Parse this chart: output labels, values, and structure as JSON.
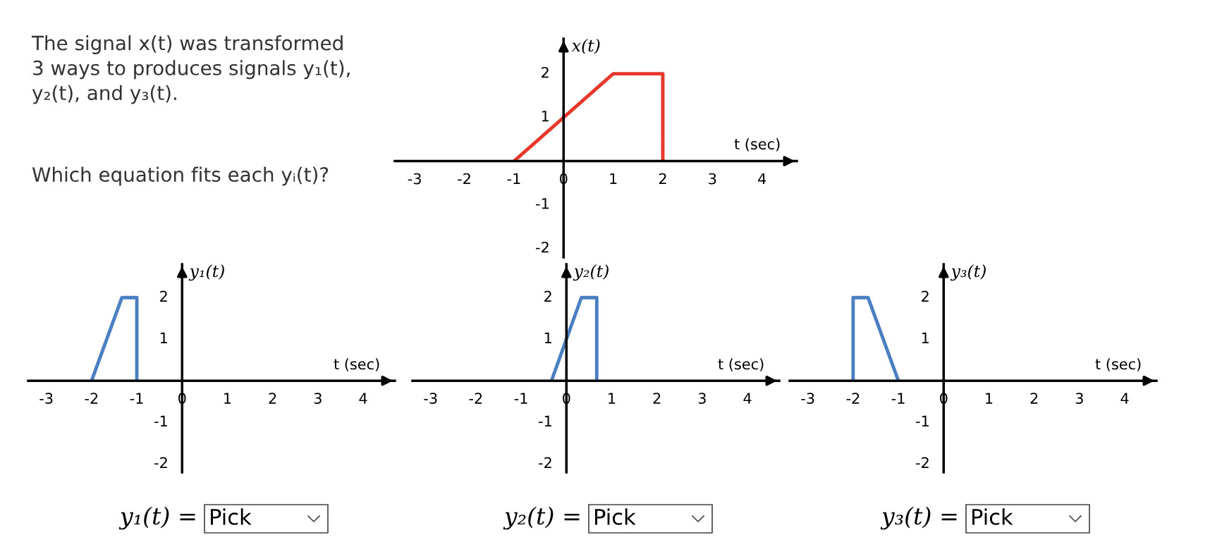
{
  "chart_data": [
    {
      "type": "line",
      "xlabel": "t (sec)",
      "ylabel": "x(t)",
      "xlim": [
        -3.4,
        4.7
      ],
      "ylim": [
        -2.2,
        2.8
      ],
      "xticks": [
        -3,
        -2,
        -1,
        0,
        1,
        2,
        3,
        4
      ],
      "yticks": [
        -2,
        -1,
        1,
        2
      ],
      "grid": false,
      "legend": false,
      "marker": "none",
      "line_style": "solid",
      "series": [
        {
          "color": "#e8372b",
          "x": [
            -1,
            1,
            2,
            2
          ],
          "values": [
            0,
            2,
            2,
            0
          ]
        }
      ],
      "annotations": [
        "The signal x(t) was transformed\n3 ways to produces signals y₁(t),\ny₂(t), and y₃(t).",
        "Which equation fits each yᵢ(t)?"
      ]
    },
    {
      "type": "line",
      "xlabel": "t (sec)",
      "ylabel": "y₁(t)",
      "xlim": [
        -3.4,
        4.7
      ],
      "ylim": [
        -2.2,
        2.8
      ],
      "xticks": [
        -3,
        -2,
        -1,
        0,
        1,
        2,
        3,
        4
      ],
      "yticks": [
        -2,
        -1,
        1,
        2
      ],
      "grid": false,
      "legend": false,
      "marker": "none",
      "line_style": "solid",
      "series": [
        {
          "color": "#4a7fc1",
          "x": [
            -2,
            -1.33,
            -1,
            -1
          ],
          "values": [
            0,
            2,
            2,
            0
          ]
        }
      ],
      "annotations": [
        "y₁(t) =",
        "Pick"
      ]
    },
    {
      "type": "line",
      "xlabel": "t (sec)",
      "ylabel": "y₂(t)",
      "xlim": [
        -3.4,
        4.7
      ],
      "ylim": [
        -2.2,
        2.8
      ],
      "xticks": [
        -3,
        -2,
        -1,
        0,
        1,
        2,
        3,
        4
      ],
      "yticks": [
        -2,
        -1,
        1,
        2
      ],
      "grid": false,
      "legend": false,
      "marker": "none",
      "line_style": "solid",
      "series": [
        {
          "color": "#4a7fc1",
          "x": [
            -0.33,
            0.33,
            0.67,
            0.67
          ],
          "values": [
            0,
            2,
            2,
            0
          ]
        }
      ],
      "annotations": [
        "y₂(t) =",
        "Pick"
      ]
    },
    {
      "type": "line",
      "xlabel": "t (sec)",
      "ylabel": "y₃(t)",
      "xlim": [
        -3.4,
        4.7
      ],
      "ylim": [
        -2.2,
        2.8
      ],
      "xticks": [
        -3,
        -2,
        -1,
        0,
        1,
        2,
        3,
        4
      ],
      "yticks": [
        -2,
        -1,
        1,
        2
      ],
      "grid": false,
      "legend": false,
      "marker": "none",
      "line_style": "solid",
      "series": [
        {
          "color": "#4a7fc1",
          "x": [
            -2,
            -2,
            -1.67,
            -1
          ],
          "values": [
            0,
            2,
            2,
            0
          ]
        }
      ],
      "annotations": [
        "y₃(t) =",
        "Pick"
      ]
    }
  ]
}
